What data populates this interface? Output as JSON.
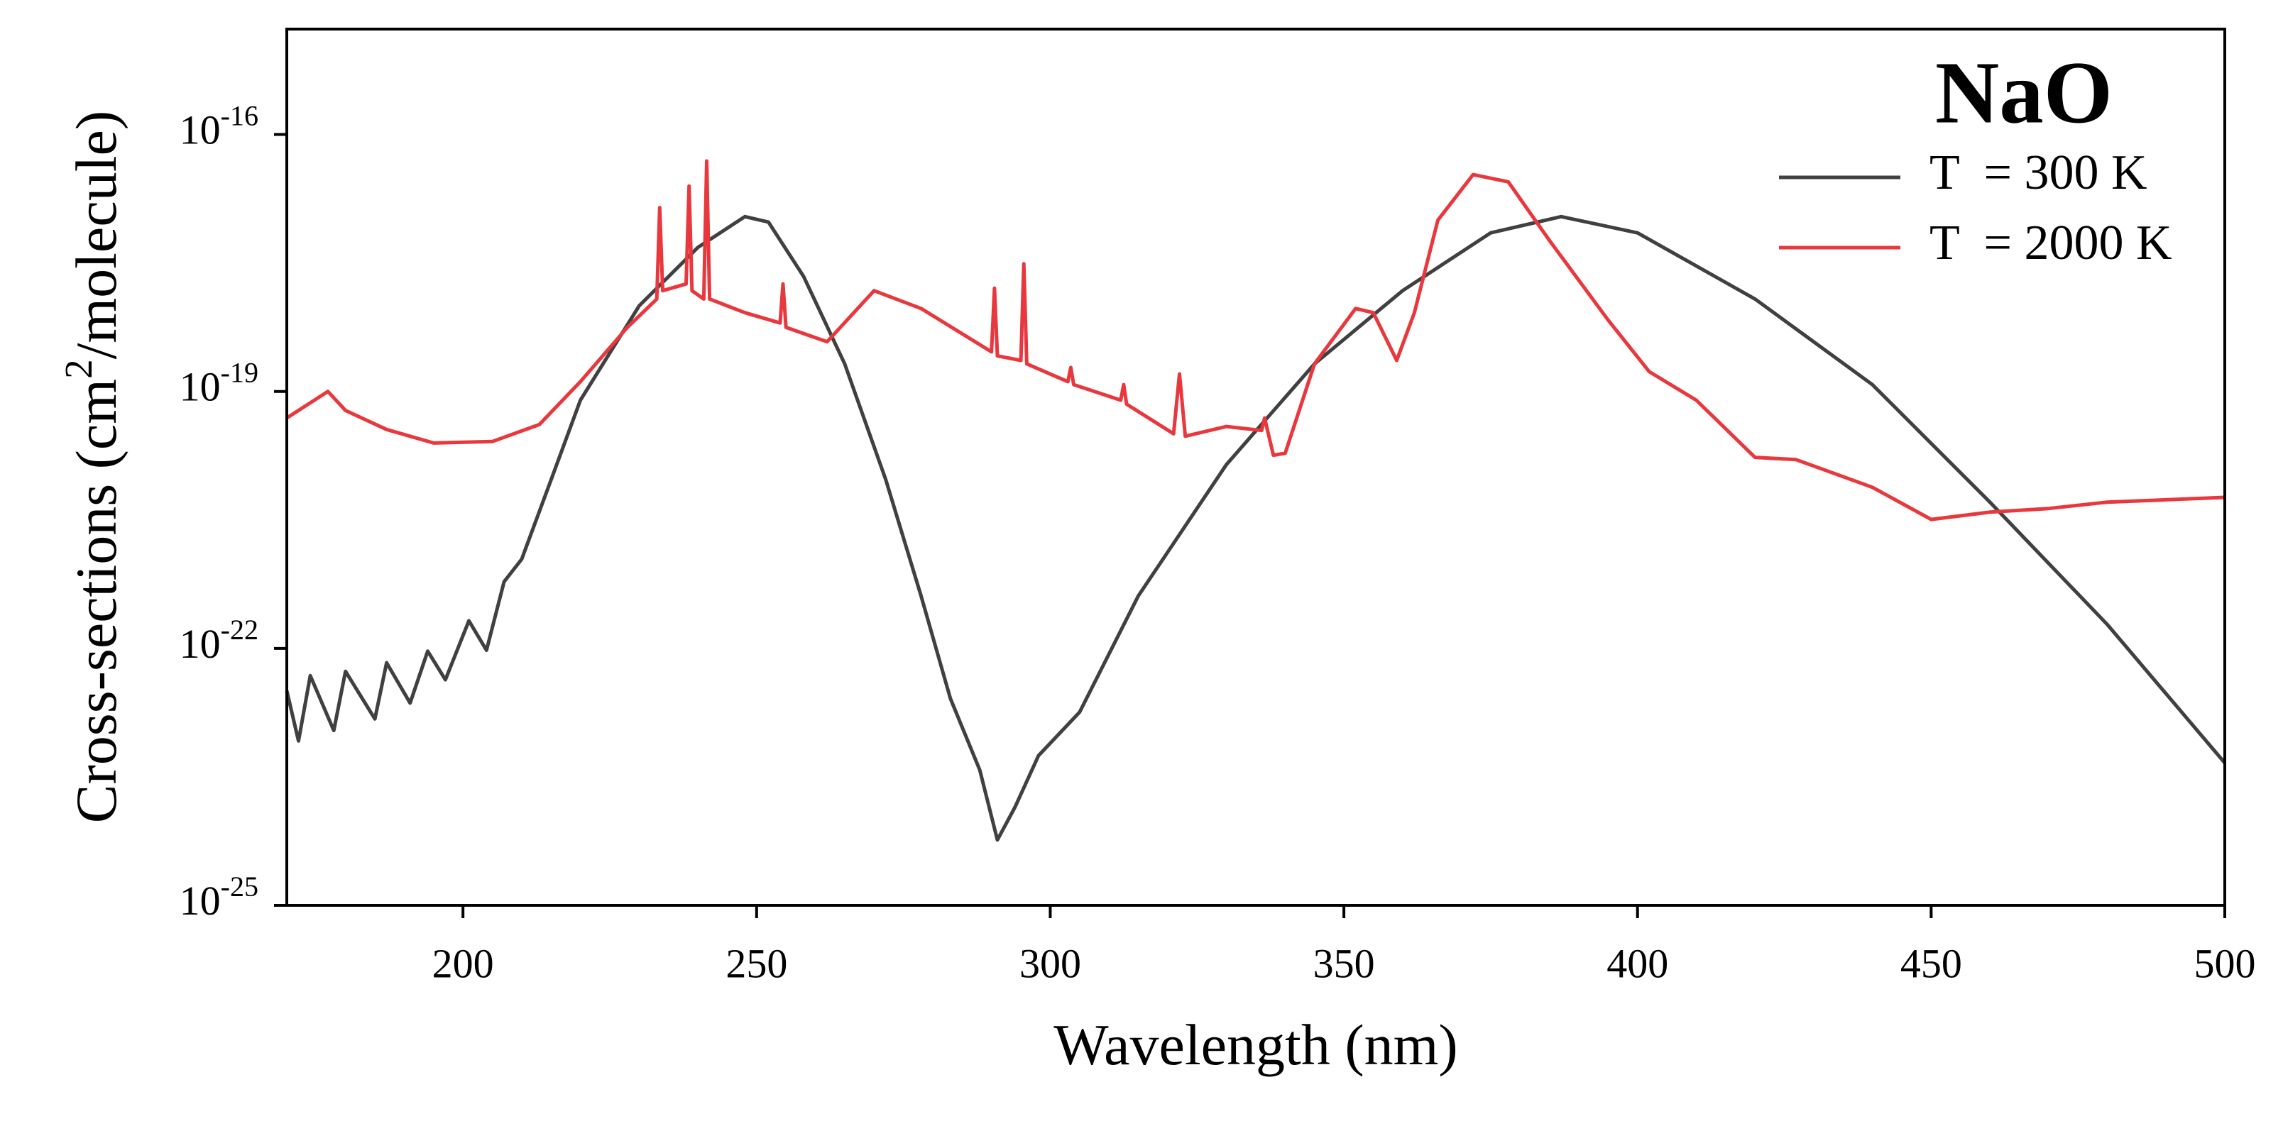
{
  "chart_data": {
    "type": "line",
    "annotation": "NaO",
    "xlabel": "Wavelength (nm)",
    "ylabel": [
      "Cross-sections (cm",
      "2",
      "/molecule)"
    ],
    "xlim": [
      170,
      500
    ],
    "xticks": [
      200,
      250,
      300,
      350,
      400,
      450,
      500
    ],
    "ylim": [
      1e-25,
      1.7e-15
    ],
    "ylog": true,
    "yticks": [
      {
        "value": 1e-25,
        "label": "10",
        "sup": "-25"
      },
      {
        "value": 1e-22,
        "label": "10",
        "sup": "-22"
      },
      {
        "value": 1e-19,
        "label": "10",
        "sup": "-19"
      },
      {
        "value": 1e-16,
        "label": "10",
        "sup": "-16"
      }
    ],
    "legend": "top-right",
    "series": [
      {
        "name": "T  = 300 K",
        "color": "#404040",
        "x": [
          170,
          172,
          174,
          178,
          180,
          185,
          187,
          191,
          194,
          197,
          201,
          204,
          207,
          210,
          215,
          220,
          230,
          240,
          248,
          252,
          258,
          265,
          272,
          278,
          283,
          288,
          291,
          294,
          298,
          305,
          315,
          330,
          345,
          360,
          375,
          387,
          400,
          420,
          440,
          460,
          480,
          500
        ],
        "values": [
          3.2e-23,
          8.3e-24,
          4.8e-23,
          1.1e-23,
          5.4e-23,
          1.5e-23,
          6.8e-23,
          2.3e-23,
          9.3e-23,
          4.3e-23,
          2.1e-22,
          9.5e-23,
          6e-22,
          1.1e-21,
          9.3e-21,
          7.9e-20,
          1e-18,
          4.8e-18,
          1.1e-17,
          9.5e-18,
          2.2e-18,
          2.1e-19,
          9.3e-21,
          4.1e-22,
          2.6e-23,
          3.8e-24,
          5.8e-25,
          1.4e-24,
          5.6e-24,
          1.8e-23,
          4.1e-22,
          1.4e-20,
          2.1e-19,
          1.5e-18,
          7.1e-18,
          1.1e-17,
          7.1e-18,
          1.2e-18,
          1.2e-19,
          5.1e-21,
          1.9e-22,
          4.6e-24
        ]
      },
      {
        "name": "T  = 2000 K",
        "color": "#e8383d",
        "x": [
          170,
          177,
          180,
          187,
          195,
          205,
          213,
          220,
          228,
          233,
          233.5,
          234,
          238,
          238.5,
          239,
          241,
          241.5,
          242,
          248,
          254,
          254.5,
          255,
          262,
          270,
          278,
          290,
          290.5,
          291,
          295,
          295.5,
          296,
          303,
          303.5,
          304,
          312,
          312.5,
          313,
          321,
          322,
          323,
          330,
          336,
          336.5,
          338,
          340,
          345,
          352,
          355,
          359,
          362,
          366,
          372,
          378,
          385,
          395,
          402,
          410,
          420,
          427,
          440,
          450,
          460,
          470,
          480,
          500
        ],
        "values": [
          4.9e-20,
          1e-19,
          6e-20,
          3.6e-20,
          2.5e-20,
          2.6e-20,
          4.1e-20,
          1.3e-19,
          5.6e-19,
          1.2e-18,
          1.4e-17,
          1.5e-18,
          1.8e-18,
          2.5e-17,
          1.5e-18,
          1.2e-18,
          4.9e-17,
          1.2e-18,
          8.3e-19,
          6.3e-19,
          1.8e-18,
          5.6e-19,
          3.8e-19,
          1.5e-18,
          9.3e-19,
          2.9e-19,
          1.6e-18,
          2.6e-19,
          2.3e-19,
          3.1e-18,
          2.1e-19,
          1.3e-19,
          1.9e-19,
          1.2e-19,
          7.9e-20,
          1.2e-19,
          7.1e-20,
          3.2e-20,
          1.6e-19,
          3e-20,
          3.9e-20,
          3.5e-20,
          4.9e-20,
          1.8e-20,
          1.9e-20,
          2.1e-19,
          9.3e-19,
          8.3e-19,
          2.3e-19,
          8.3e-19,
          1e-17,
          3.4e-17,
          2.8e-17,
          5.8e-18,
          6.8e-19,
          1.7e-19,
          7.9e-20,
          1.7e-20,
          1.6e-20,
          7.6e-21,
          3.2e-21,
          3.9e-21,
          4.3e-21,
          5.1e-21,
          5.8e-21
        ]
      }
    ]
  }
}
